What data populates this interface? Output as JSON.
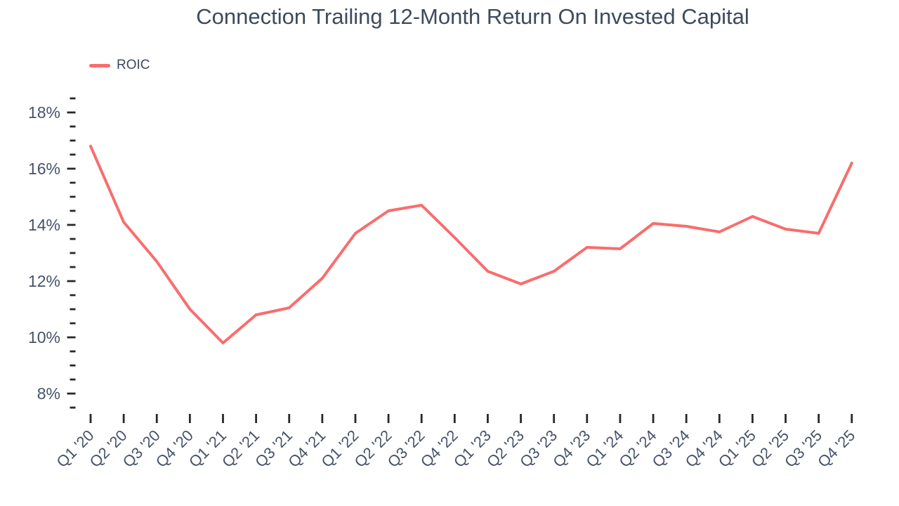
{
  "title": "Connection Trailing 12-Month Return On Invested Capital",
  "colors": {
    "line": "#F96D6D",
    "title_text": "#3E4A5C",
    "axis_text": "#47536A",
    "tick_mark": "#26282E",
    "background": "#FFFFFF"
  },
  "chart_data": {
    "type": "line",
    "title": "Connection Trailing 12-Month Return On Invested Capital",
    "xlabel": "",
    "ylabel": "",
    "grid": false,
    "legend_position": "top-left",
    "x_labels": [
      "Q1 '20",
      "Q2 '20",
      "Q3 '20",
      "Q4 '20",
      "Q1 '21",
      "Q2 '21",
      "Q3 '21",
      "Q4 '21",
      "Q1 '22",
      "Q2 '22",
      "Q3 '22",
      "Q4 '22",
      "Q1 '23",
      "Q2 '23",
      "Q3 '23",
      "Q4 '23",
      "Q1 '24",
      "Q2 '24",
      "Q3 '24",
      "Q4 '24",
      "Q1 '25",
      "Q2 '25",
      "Q3 '25",
      "Q4 '25"
    ],
    "series": [
      {
        "name": "ROIC",
        "color": "#F96D6D",
        "values": [
          16.8,
          14.1,
          12.7,
          11.0,
          9.8,
          10.8,
          11.05,
          12.1,
          13.7,
          14.5,
          14.7,
          13.55,
          12.35,
          11.9,
          12.35,
          13.2,
          13.15,
          14.05,
          13.95,
          13.75,
          14.3,
          13.85,
          13.7,
          16.2
        ]
      }
    ],
    "y_axis": {
      "unit": "%",
      "ylim": [
        7.5,
        18.5
      ],
      "minor_tick_step": 0.5,
      "labeled_tick_step": 2,
      "labeled_ticks": [
        "8%",
        "10%",
        "12%",
        "14%",
        "16%",
        "18%"
      ]
    }
  }
}
